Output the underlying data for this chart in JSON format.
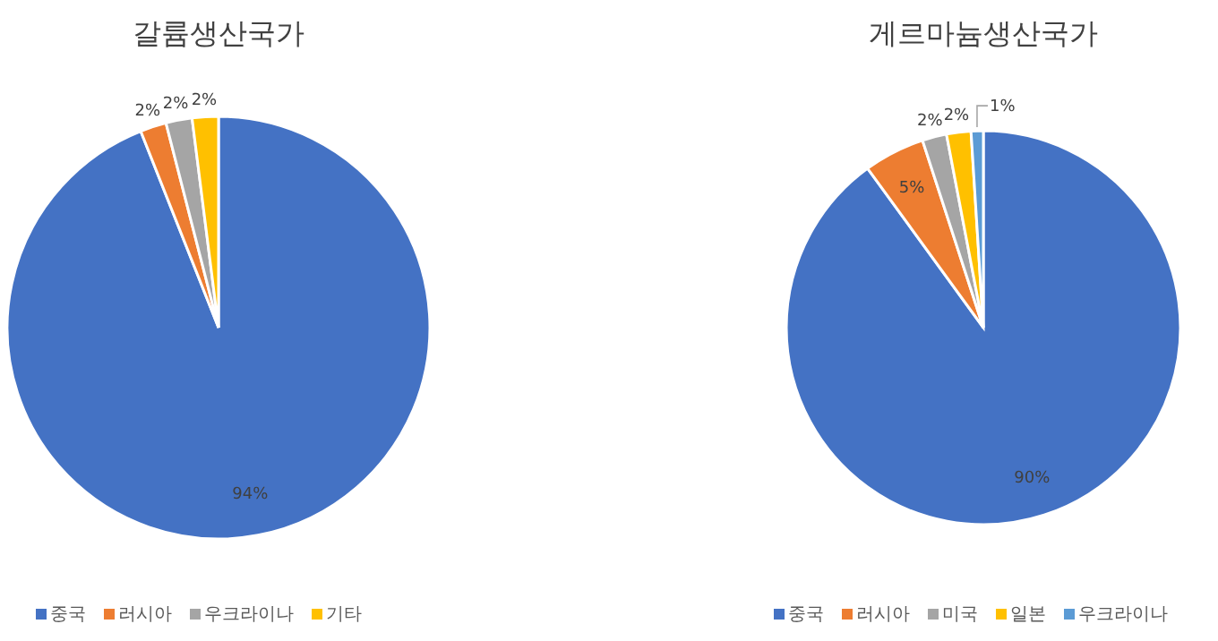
{
  "chart_data": [
    {
      "type": "pie",
      "title": "갈륨생산국가",
      "categories": [
        "중국",
        "러시아",
        "우크라이나",
        "기타"
      ],
      "values": [
        94,
        2,
        2,
        2
      ],
      "colors": [
        "#4472c4",
        "#ed7d31",
        "#a5a5a5",
        "#ffc000"
      ],
      "value_labels": [
        "94%",
        "2%",
        "2%",
        "2%"
      ],
      "legend": "bottom"
    },
    {
      "type": "pie",
      "title": "게르마늄생산국가",
      "categories": [
        "중국",
        "러시아",
        "미국",
        "일본",
        "우크라이나"
      ],
      "values": [
        90,
        5,
        2,
        2,
        1
      ],
      "colors": [
        "#4472c4",
        "#ed7d31",
        "#a5a5a5",
        "#ffc000",
        "#5b9bd5"
      ],
      "value_labels": [
        "90%",
        "5%",
        "2%",
        "2%",
        "1%"
      ],
      "legend": "bottom"
    }
  ]
}
